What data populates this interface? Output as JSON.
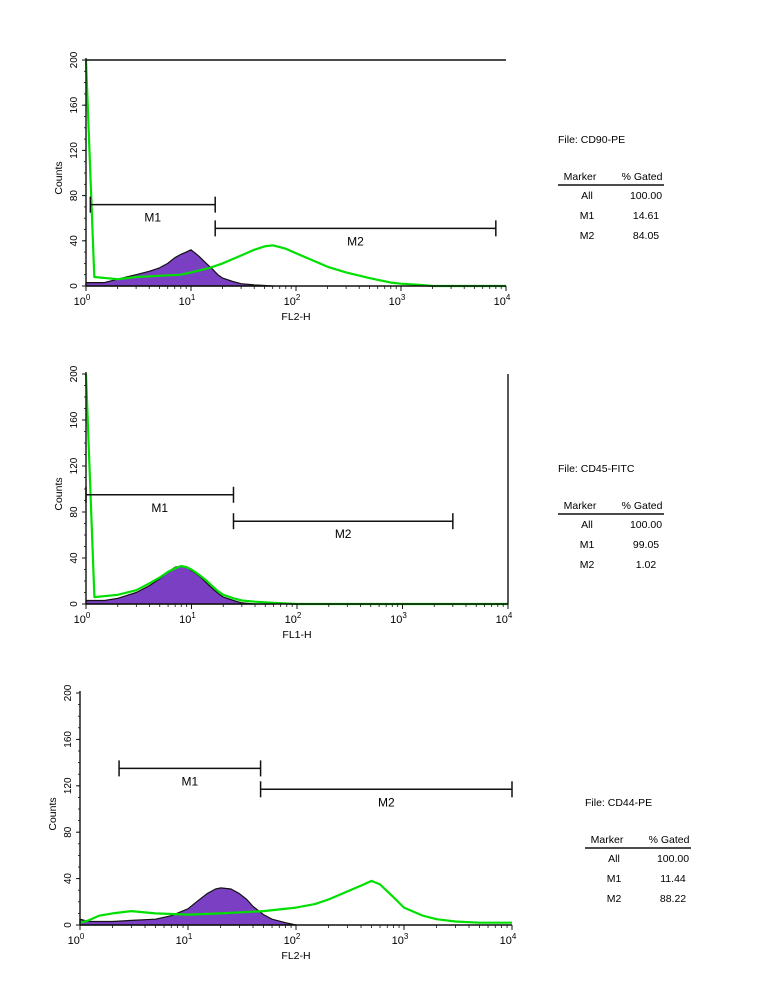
{
  "chart_data": [
    {
      "type": "area",
      "xscale": "log",
      "xlim": [
        1,
        10000
      ],
      "ylim": [
        0,
        200
      ],
      "yticks": [
        0,
        40,
        80,
        120,
        160,
        200
      ],
      "xticks": [
        1,
        10,
        100,
        1000,
        10000
      ],
      "xtick_labels": [
        {
          "base": "10",
          "exp": "0"
        },
        {
          "base": "10",
          "exp": "1"
        },
        {
          "base": "10",
          "exp": "2"
        },
        {
          "base": "10",
          "exp": "3"
        },
        {
          "base": "10",
          "exp": "4"
        }
      ],
      "xlabel": "FL2-H",
      "ylabel": "Counts",
      "markers": [
        {
          "label": "M1",
          "from": 1.1,
          "to": 17,
          "y": 72
        },
        {
          "label": "M2",
          "from": 17,
          "to": 8000,
          "y": 51
        }
      ],
      "series": [
        {
          "role": "control",
          "color": "#7b3fc4",
          "outline": "#111111",
          "x": [
            1,
            1.5,
            2,
            3,
            4,
            5,
            6,
            7,
            8,
            9,
            10,
            11,
            12,
            14,
            16,
            18,
            20,
            25,
            30,
            40,
            60
          ],
          "y": [
            3,
            3,
            6,
            10,
            13,
            16,
            20,
            25,
            28,
            30,
            32,
            29,
            26,
            20,
            15,
            10,
            7,
            4,
            2,
            1,
            0
          ]
        },
        {
          "role": "stained",
          "color": "#00e000",
          "x": [
            1,
            1.2,
            2,
            3,
            5,
            8,
            10,
            15,
            20,
            30,
            40,
            50,
            60,
            80,
            100,
            150,
            200,
            300,
            500,
            800,
            1000,
            1500,
            2000,
            3000,
            5000,
            10000
          ],
          "y": [
            200,
            8,
            6,
            8,
            9,
            10,
            12,
            16,
            20,
            27,
            32,
            35,
            36,
            33,
            29,
            22,
            17,
            12,
            7,
            3,
            2,
            1,
            0,
            0,
            0,
            0
          ]
        }
      ],
      "stats": {
        "file_label": "File: CD90-PE",
        "columns": [
          "Marker",
          "% Gated"
        ],
        "rows": [
          [
            "All",
            "100.00"
          ],
          [
            "M1",
            "14.61"
          ],
          [
            "M2",
            "84.05"
          ]
        ]
      }
    },
    {
      "type": "area",
      "xscale": "log",
      "xlim": [
        1,
        10000
      ],
      "ylim": [
        0,
        200
      ],
      "yticks": [
        0,
        40,
        80,
        120,
        160,
        200
      ],
      "xticks": [
        1,
        10,
        100,
        1000,
        10000
      ],
      "xtick_labels": [
        {
          "base": "10",
          "exp": "0"
        },
        {
          "base": "10",
          "exp": "1"
        },
        {
          "base": "10",
          "exp": "2"
        },
        {
          "base": "10",
          "exp": "3"
        },
        {
          "base": "10",
          "exp": "4"
        }
      ],
      "xlabel": "FL1-H",
      "ylabel": "Counts",
      "markers": [
        {
          "label": "M1",
          "from": 1,
          "to": 25,
          "y": 95
        },
        {
          "label": "M2",
          "from": 25,
          "to": 3000,
          "y": 72
        }
      ],
      "series": [
        {
          "role": "control",
          "color": "#7b3fc4",
          "outline": "#111111",
          "x": [
            1,
            1.5,
            2,
            3,
            4,
            5,
            6,
            7,
            8,
            9,
            10,
            12,
            14,
            16,
            18,
            20,
            25,
            30,
            40,
            60
          ],
          "y": [
            3,
            3,
            5,
            10,
            16,
            22,
            28,
            32,
            33,
            32,
            29,
            24,
            18,
            13,
            9,
            6,
            3,
            1,
            0,
            0
          ]
        },
        {
          "role": "stained",
          "color": "#00e000",
          "x": [
            1,
            1.2,
            2,
            3,
            4,
            5,
            6,
            7,
            8,
            9,
            10,
            12,
            14,
            16,
            18,
            20,
            25,
            30,
            40,
            60,
            100,
            200,
            500,
            1000,
            10000
          ],
          "y": [
            200,
            6,
            8,
            12,
            18,
            23,
            28,
            31,
            33,
            32,
            30,
            25,
            20,
            15,
            11,
            8,
            5,
            3,
            2,
            1,
            0,
            0,
            0,
            0,
            0
          ]
        }
      ],
      "stats": {
        "file_label": "File: CD45-FITC",
        "columns": [
          "Marker",
          "% Gated"
        ],
        "rows": [
          [
            "All",
            "100.00"
          ],
          [
            "M1",
            "99.05"
          ],
          [
            "M2",
            "1.02"
          ]
        ]
      }
    },
    {
      "type": "area",
      "xscale": "log",
      "xlim": [
        1,
        10000
      ],
      "ylim": [
        0,
        200
      ],
      "yticks": [
        0,
        40,
        80,
        120,
        160,
        200
      ],
      "xticks": [
        1,
        10,
        100,
        1000,
        10000
      ],
      "xtick_labels": [
        {
          "base": "10",
          "exp": "0"
        },
        {
          "base": "10",
          "exp": "1"
        },
        {
          "base": "10",
          "exp": "2"
        },
        {
          "base": "10",
          "exp": "3"
        },
        {
          "base": "10",
          "exp": "4"
        }
      ],
      "xlabel": "FL2-H",
      "ylabel": "Counts",
      "markers": [
        {
          "label": "M1",
          "from": 2.3,
          "to": 47,
          "y": 135
        },
        {
          "label": "M2",
          "from": 47,
          "to": 10000,
          "y": 117
        }
      ],
      "series": [
        {
          "role": "control",
          "color": "#7b3fc4",
          "outline": "#111111",
          "x": [
            1,
            1.2,
            2,
            3,
            5,
            7,
            10,
            12,
            15,
            18,
            20,
            25,
            30,
            35,
            40,
            50,
            60,
            80,
            100
          ],
          "y": [
            5,
            3,
            3,
            4,
            5,
            8,
            14,
            20,
            27,
            31,
            32,
            31,
            27,
            22,
            16,
            9,
            5,
            2,
            0
          ]
        },
        {
          "role": "stained",
          "color": "#00e000",
          "x": [
            1,
            1.2,
            1.5,
            2,
            3,
            5,
            10,
            20,
            50,
            100,
            150,
            200,
            300,
            400,
            500,
            600,
            800,
            1000,
            1500,
            2000,
            3000,
            5000,
            10000
          ],
          "y": [
            2,
            4,
            8,
            10,
            12,
            10,
            9,
            10,
            12,
            15,
            18,
            22,
            29,
            34,
            38,
            35,
            24,
            15,
            8,
            5,
            3,
            2,
            2
          ]
        }
      ],
      "stats": {
        "file_label": "File: CD44-PE",
        "columns": [
          "Marker",
          "% Gated"
        ],
        "rows": [
          [
            "All",
            "100.00"
          ],
          [
            "M1",
            "11.44"
          ],
          [
            "M2",
            "88.22"
          ]
        ]
      }
    }
  ]
}
